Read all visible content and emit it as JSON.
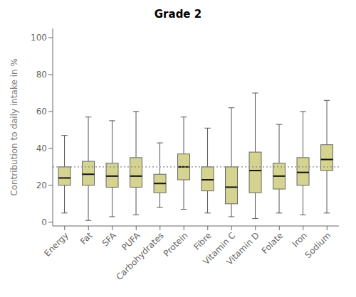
{
  "chart_data": {
    "type": "box",
    "title": "Grade 2",
    "ylabel": "Contribution to daily intake in %",
    "ylim": [
      -2,
      105
    ],
    "yticks": [
      0,
      20,
      40,
      60,
      80,
      100
    ],
    "reference_line": 30,
    "grid": false,
    "color": "#d4d490",
    "categories": [
      "Energy",
      "Fat",
      "SFA",
      "PUFA",
      "Carbohydrates",
      "Protein",
      "Fibre",
      "Vitamin C",
      "Vitamin D",
      "Folate",
      "Iron",
      "Sodium"
    ],
    "values": [
      {
        "low": 5,
        "q1": 20,
        "median": 24,
        "q3": 30,
        "high": 47
      },
      {
        "low": 1,
        "q1": 20,
        "median": 26,
        "q3": 33,
        "high": 57
      },
      {
        "low": 3,
        "q1": 19,
        "median": 25,
        "q3": 32,
        "high": 55
      },
      {
        "low": 4,
        "q1": 19,
        "median": 25,
        "q3": 35,
        "high": 60
      },
      {
        "low": 8,
        "q1": 16,
        "median": 21,
        "q3": 26,
        "high": 43
      },
      {
        "low": 7,
        "q1": 23,
        "median": 30,
        "q3": 37,
        "high": 57
      },
      {
        "low": 5,
        "q1": 17,
        "median": 23,
        "q3": 30,
        "high": 51
      },
      {
        "low": 3,
        "q1": 10,
        "median": 19,
        "q3": 30,
        "high": 62
      },
      {
        "low": 2,
        "q1": 16,
        "median": 28,
        "q3": 38,
        "high": 70
      },
      {
        "low": 5,
        "q1": 18,
        "median": 25,
        "q3": 32,
        "high": 53
      },
      {
        "low": 4,
        "q1": 20,
        "median": 27,
        "q3": 35,
        "high": 60
      },
      {
        "low": 5,
        "q1": 28,
        "median": 34,
        "q3": 42,
        "high": 66
      }
    ]
  }
}
